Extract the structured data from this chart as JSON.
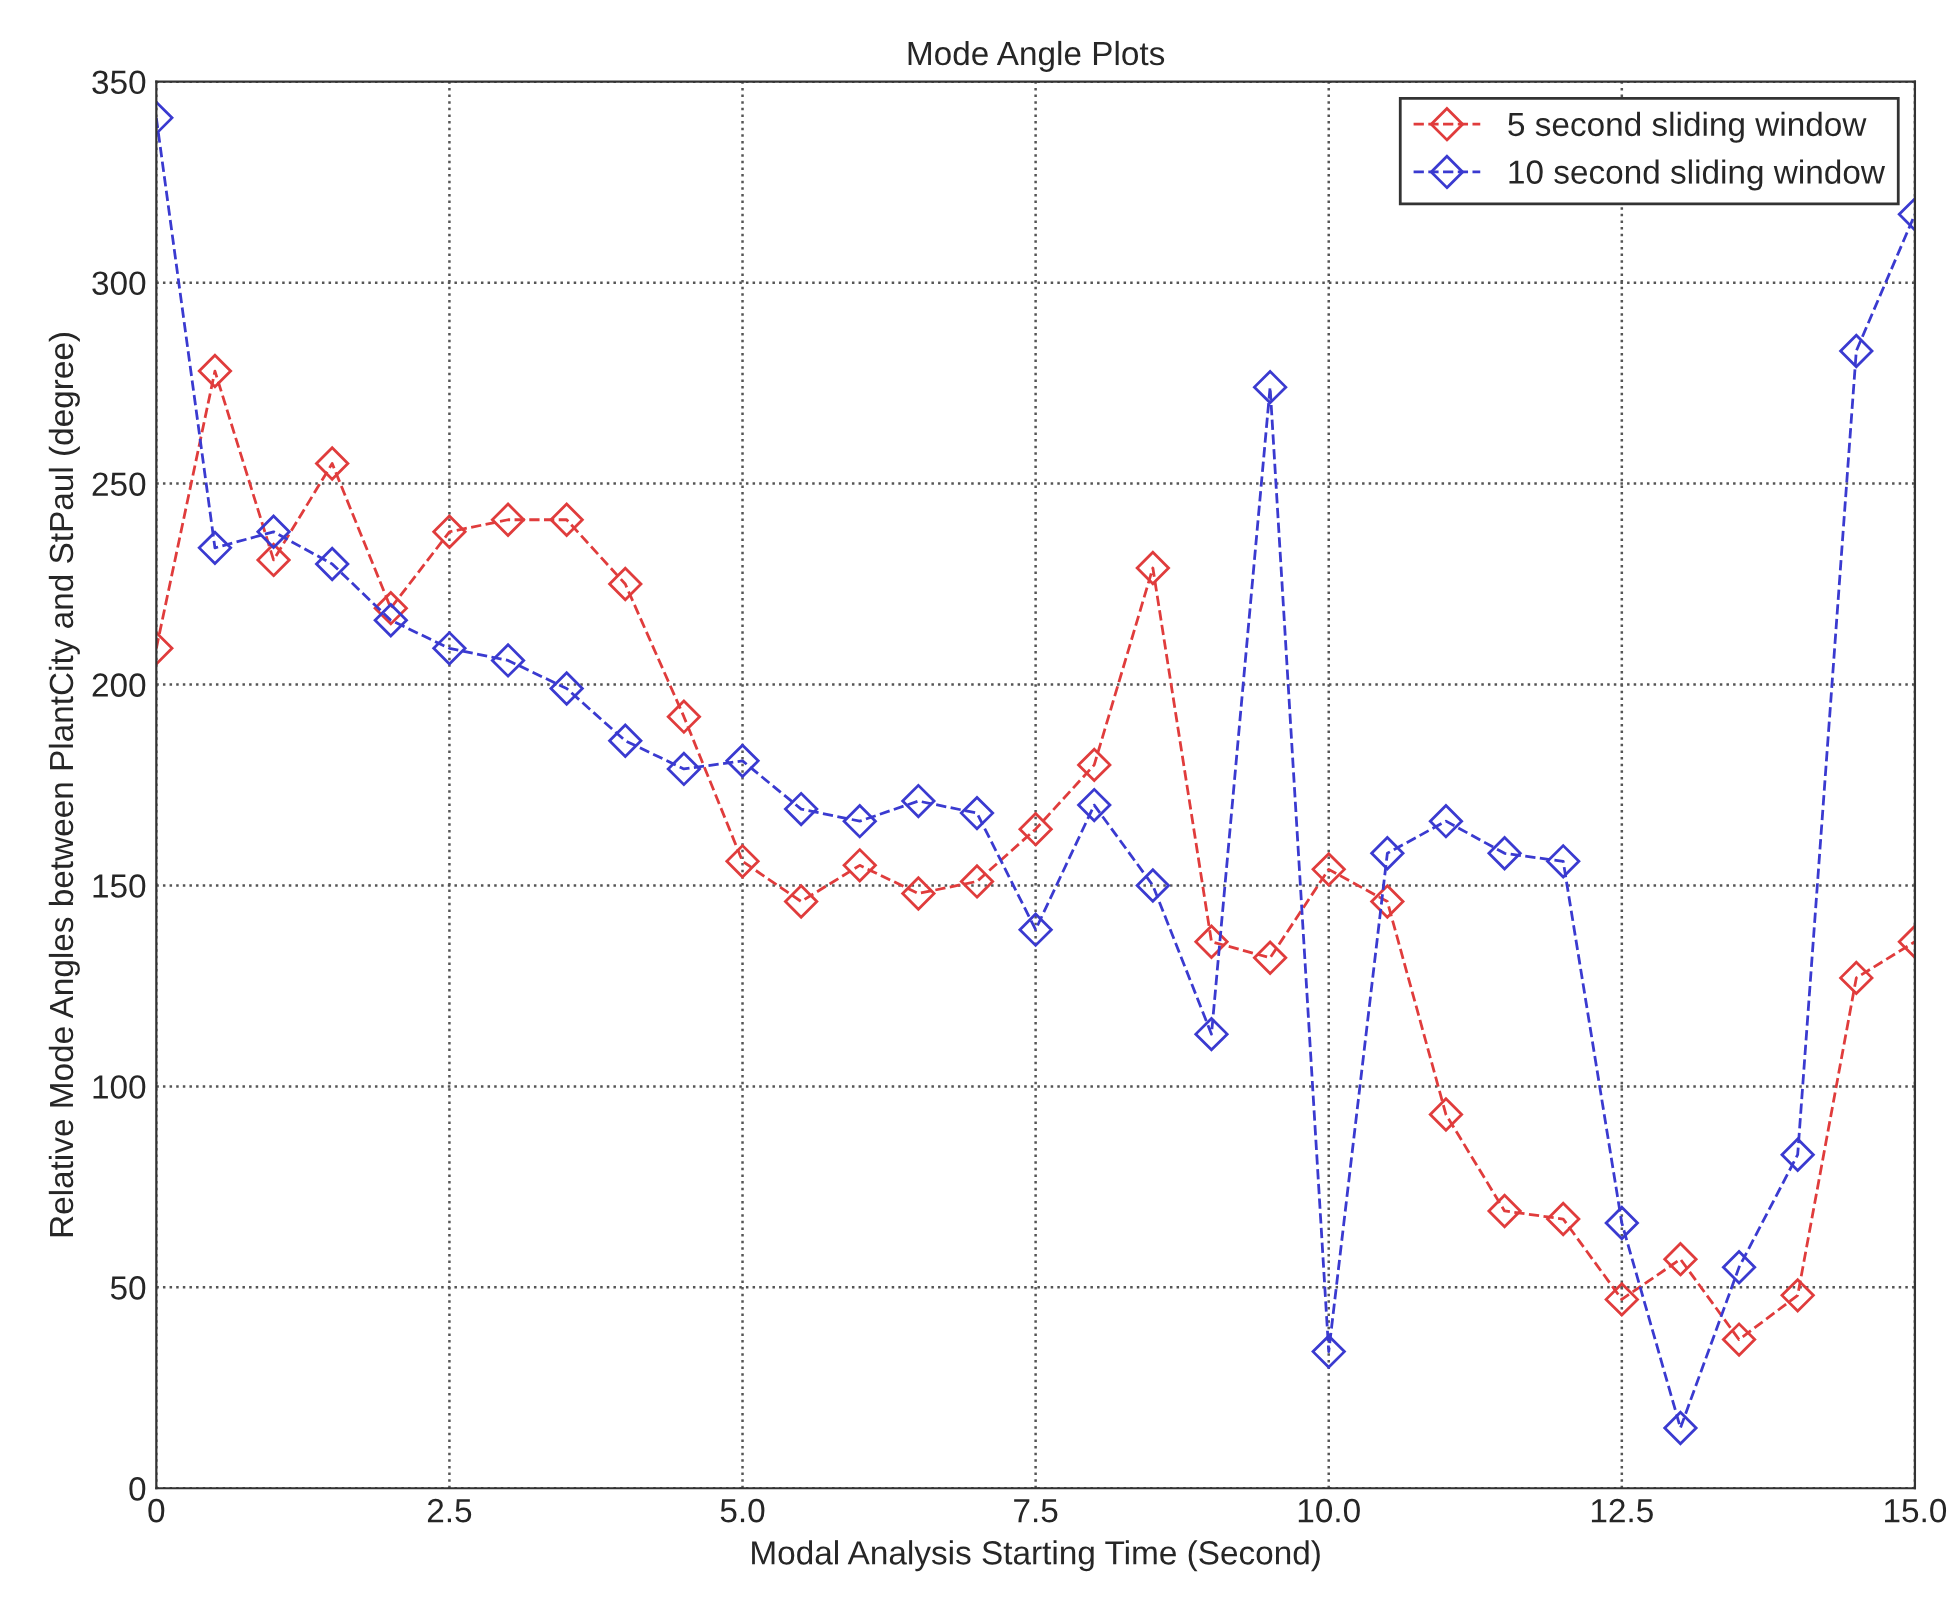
{
  "chart_data": {
    "type": "line",
    "title": "Mode Angle Plots",
    "xlabel": "Modal Analysis Starting Time (Second)",
    "ylabel": "Relative Mode Angles between PlantCity and StPaul (degree)",
    "x": [
      0,
      0.5,
      1,
      1.5,
      2,
      2.5,
      3,
      3.5,
      4,
      4.5,
      5,
      5.5,
      6,
      6.5,
      7,
      7.5,
      8,
      8.5,
      9,
      9.5,
      10,
      10.5,
      11,
      11.5,
      12,
      12.5,
      13,
      13.5,
      14,
      14.5,
      15
    ],
    "series": [
      {
        "name": "5 second sliding window",
        "color": "#e03c3c",
        "values": [
          209,
          278,
          231,
          255,
          219,
          238,
          241,
          241,
          225,
          192,
          156,
          146,
          155,
          148,
          151,
          164,
          180,
          229,
          136,
          132,
          154,
          146,
          93,
          69,
          67,
          47,
          57,
          37,
          48,
          127,
          136
        ]
      },
      {
        "name": "10 second sliding window",
        "color": "#3a3ad0",
        "values": [
          341,
          234,
          238,
          230,
          216,
          209,
          206,
          199,
          186,
          179,
          181,
          169,
          166,
          171,
          168,
          139,
          170,
          150,
          113,
          274,
          34,
          158,
          166,
          158,
          156,
          66,
          15,
          55,
          83,
          283,
          317
        ]
      }
    ],
    "xlim": [
      0,
      15
    ],
    "xticks": [
      0,
      2.5,
      {
        "value": 5,
        "label": "5.0"
      },
      7.5,
      {
        "value": 10,
        "label": "10.0"
      },
      12.5,
      {
        "value": 15,
        "label": "15.0"
      }
    ],
    "ylim": [
      0,
      350
    ],
    "yticks": [
      0,
      50,
      100,
      150,
      200,
      250,
      300,
      350
    ],
    "grid": true,
    "legend": "top right",
    "marker": "diamond",
    "line_style": "dashed"
  }
}
